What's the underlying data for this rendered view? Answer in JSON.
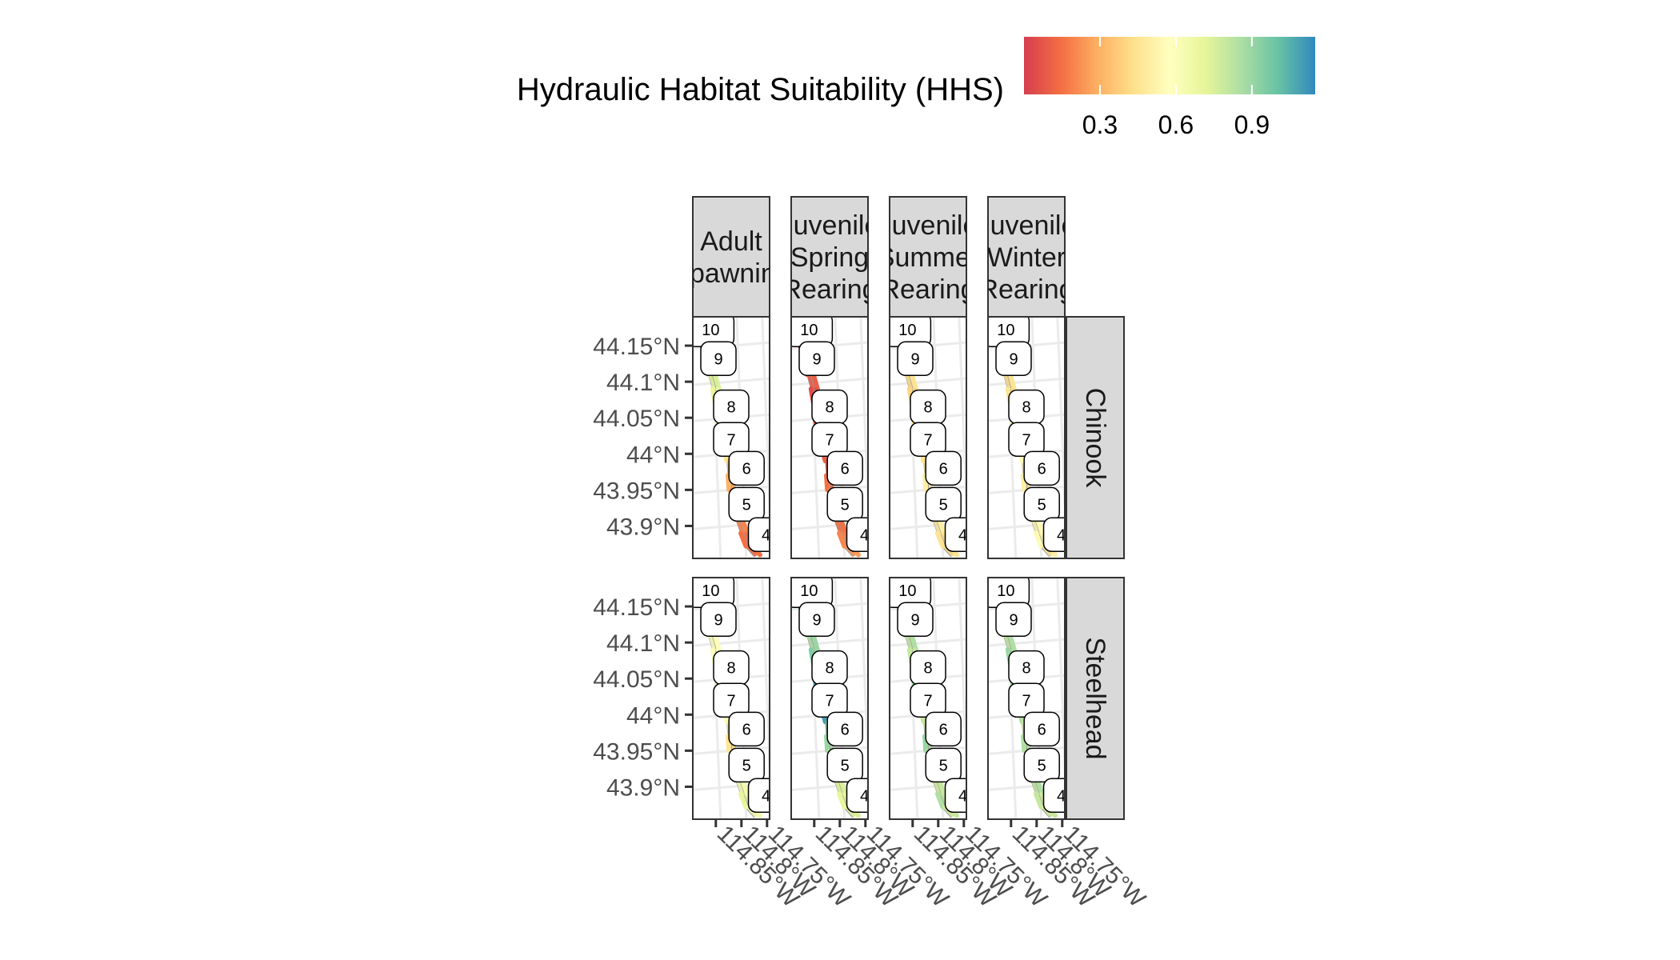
{
  "chart_data": {
    "type": "map",
    "legend": {
      "title": "Hydraulic Habitat Suitability (HHS)",
      "ticks": [
        "0.3",
        "0.6",
        "0.9"
      ],
      "tick_values": [
        0.3,
        0.6,
        0.9
      ],
      "range": [
        0.0,
        1.15
      ],
      "colors": [
        "#d53e4f",
        "#f46d43",
        "#fdae61",
        "#fee08b",
        "#ffffbf",
        "#e6f598",
        "#abdda4",
        "#66c2a5",
        "#3288bd"
      ],
      "placement": "top"
    },
    "columns": [
      {
        "id": "adult_spawning",
        "strip_lines": [
          "Adult",
          "Spawning"
        ]
      },
      {
        "id": "juvenile_spring",
        "strip_lines": [
          "Juvenile",
          "Spring",
          "Rearing"
        ]
      },
      {
        "id": "juvenile_summer",
        "strip_lines": [
          "Juvenile",
          "Summer",
          "Rearing"
        ]
      },
      {
        "id": "juvenile_winter",
        "strip_lines": [
          "Juvenile",
          "Winter",
          "Rearing"
        ]
      }
    ],
    "rows": [
      {
        "id": "chinook",
        "label": "Chinook"
      },
      {
        "id": "steelhead",
        "label": "Steelhead"
      }
    ],
    "y_axis": {
      "ticks": [
        44.15,
        44.1,
        44.05,
        44.0,
        43.95,
        43.9
      ],
      "tick_labels": [
        "44.15°N",
        "44.1°N",
        "44.05°N",
        "44°N",
        "43.95°N",
        "43.9°N"
      ],
      "range": [
        43.855,
        44.19
      ]
    },
    "x_axis": {
      "ticks": [
        -114.85,
        -114.8,
        -114.75
      ],
      "tick_labels": [
        "114.85°W",
        "114.8°W",
        "114.75°W"
      ],
      "range": [
        -114.895,
        -114.745
      ]
    },
    "reach_labels": [
      {
        "label": "10",
        "lon": -114.86,
        "lat": 44.172
      },
      {
        "label": "9",
        "lon": -114.845,
        "lat": 44.132
      },
      {
        "label": "8",
        "lon": -114.82,
        "lat": 44.065
      },
      {
        "label": "7",
        "lon": -114.82,
        "lat": 44.02
      },
      {
        "label": "6",
        "lon": -114.79,
        "lat": 43.98
      },
      {
        "label": "5",
        "lon": -114.79,
        "lat": 43.93
      },
      {
        "label": "4",
        "lon": -114.752,
        "lat": 43.888
      }
    ],
    "river_path": [
      [
        -114.885,
        44.182
      ],
      [
        -114.88,
        44.165
      ],
      [
        -114.873,
        44.15
      ],
      [
        -114.866,
        44.13
      ],
      [
        -114.858,
        44.11
      ],
      [
        -114.85,
        44.09
      ],
      [
        -114.845,
        44.07
      ],
      [
        -114.842,
        44.05
      ],
      [
        -114.838,
        44.03
      ],
      [
        -114.83,
        44.01
      ],
      [
        -114.822,
        43.99
      ],
      [
        -114.82,
        43.97
      ],
      [
        -114.818,
        43.95
      ],
      [
        -114.812,
        43.93
      ],
      [
        -114.805,
        43.91
      ],
      [
        -114.795,
        43.89
      ],
      [
        -114.785,
        43.872
      ],
      [
        -114.77,
        43.86
      ]
    ],
    "hhs_values": {
      "chinook": {
        "adult_spawning": [
          0.85,
          0.9,
          0.85,
          0.8,
          0.75,
          0.7,
          0.7,
          0.65,
          0.6,
          0.45,
          0.35,
          0.3,
          0.25,
          0.2,
          0.2,
          0.15,
          0.15,
          0.1
        ],
        "juvenile_spring": [
          0.15,
          0.1,
          0.05,
          0.1,
          0.1,
          0.05,
          0.05,
          0.05,
          0.05,
          0.1,
          0.1,
          0.15,
          0.2,
          0.2,
          0.15,
          0.2,
          0.25,
          0.2
        ],
        "juvenile_summer": [
          0.55,
          0.5,
          0.45,
          0.45,
          0.45,
          0.4,
          0.4,
          0.45,
          0.45,
          0.45,
          0.45,
          0.5,
          0.5,
          0.5,
          0.5,
          0.45,
          0.45,
          0.4
        ],
        "juvenile_winter": [
          0.5,
          0.45,
          0.4,
          0.45,
          0.45,
          0.45,
          0.5,
          0.5,
          0.5,
          0.55,
          0.55,
          0.5,
          0.5,
          0.5,
          0.55,
          0.55,
          0.5,
          0.5
        ]
      },
      "steelhead": {
        "adult_spawning": [
          0.65,
          0.7,
          0.65,
          0.6,
          0.6,
          0.6,
          0.65,
          0.7,
          0.75,
          0.6,
          0.5,
          0.45,
          0.5,
          0.6,
          0.65,
          0.7,
          0.65,
          0.6
        ],
        "juvenile_spring": [
          1.05,
          1.0,
          0.95,
          0.85,
          0.9,
          0.95,
          1.0,
          1.1,
          1.15,
          1.1,
          1.0,
          0.9,
          0.85,
          0.8,
          0.75,
          0.7,
          0.75,
          0.7
        ],
        "juvenile_summer": [
          0.85,
          0.8,
          0.85,
          0.9,
          0.85,
          0.8,
          0.85,
          0.9,
          0.85,
          0.8,
          0.85,
          0.9,
          0.85,
          0.8,
          0.8,
          0.85,
          0.8,
          0.8
        ],
        "juvenile_winter": [
          0.8,
          0.85,
          0.85,
          0.8,
          0.85,
          0.9,
          0.85,
          0.85,
          0.9,
          0.85,
          0.8,
          0.85,
          0.85,
          0.8,
          0.85,
          0.8,
          0.8,
          0.8
        ]
      }
    },
    "grid": true
  }
}
